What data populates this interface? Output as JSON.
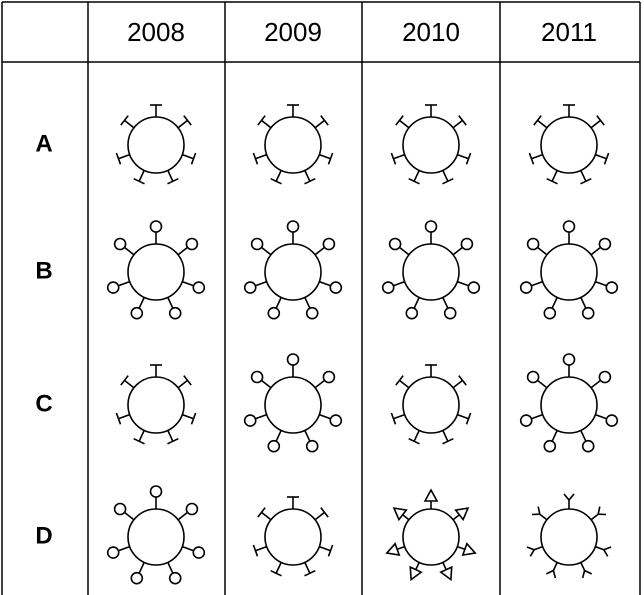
{
  "table": {
    "columns": [
      "2008",
      "2009",
      "2010",
      "2011"
    ],
    "rows": [
      "A",
      "B",
      "C",
      "D"
    ]
  }
}
